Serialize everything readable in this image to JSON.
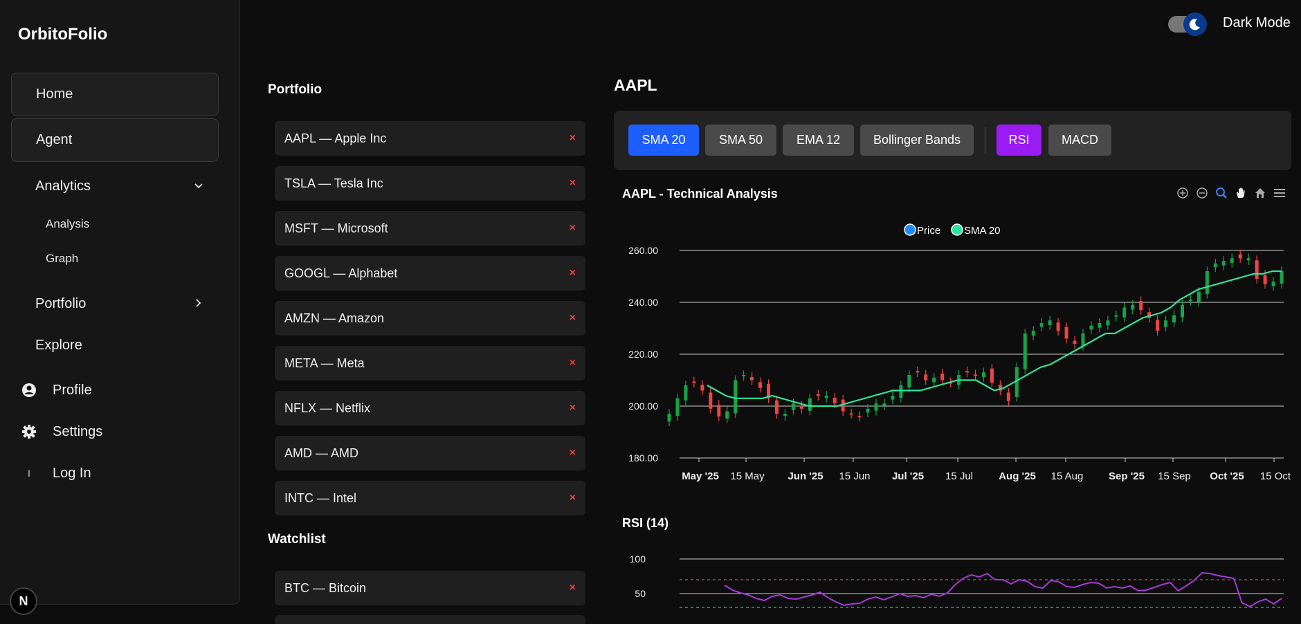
{
  "app": {
    "brand": "OrbitoFolio",
    "dark_mode_label": "Dark Mode"
  },
  "sidebar": {
    "home": "Home",
    "agent": "Agent",
    "analytics": "Analytics",
    "analytics_sub": [
      "Analysis",
      "Graph"
    ],
    "portfolio": "Portfolio",
    "explore": "Explore",
    "profile": "Profile",
    "settings": "Settings",
    "login": "Log In",
    "login_glyph": "I",
    "logo_letter": "N"
  },
  "portfolio": {
    "title": "Portfolio",
    "remove_glyph": "×",
    "items": [
      "AAPL — Apple Inc",
      "TSLA — Tesla Inc",
      "MSFT — Microsoft",
      "GOOGL — Alphabet",
      "AMZN — Amazon",
      "META — Meta",
      "NFLX — Netflix",
      "AMD — AMD",
      "INTC — Intel"
    ]
  },
  "watchlist": {
    "title": "Watchlist",
    "items": [
      "BTC — Bitcoin"
    ]
  },
  "analysis": {
    "ticker": "AAPL",
    "indicators": [
      "SMA 20",
      "SMA 50",
      "EMA 12",
      "Bollinger Bands",
      "RSI",
      "MACD"
    ],
    "colors": {
      "sma_active": "#1e5eff",
      "rsi_active": "#9b1cf2",
      "up": "#16a34a",
      "down": "#ef4444",
      "sma_line": "#2ee59d",
      "rsi_line": "#a63ad6"
    }
  },
  "chart_data": [
    {
      "type": "candlestick",
      "title": "AAPL - Technical Analysis",
      "legend": [
        "Price",
        "SMA 20"
      ],
      "legend_placement": "top-center",
      "y_ticks": [
        "260.00",
        "240.00",
        "220.00",
        "200.00",
        "180.00"
      ],
      "ylim": [
        180,
        260
      ],
      "x_ticks": [
        "May '25",
        "15 May",
        "Jun '25",
        "15 Jun",
        "Jul '25",
        "15 Jul",
        "Aug '25",
        "15 Aug",
        "Sep '25",
        "15 Sep",
        "Oct '25",
        "15 Oct"
      ],
      "grid": true,
      "price_close_approx": [
        197,
        203,
        208,
        209,
        206,
        199,
        196,
        198,
        210,
        212,
        210,
        207,
        203,
        197,
        197,
        201,
        199,
        203,
        204,
        204,
        201,
        198,
        197,
        196,
        199,
        201,
        201,
        204,
        208,
        212,
        213,
        210,
        211,
        210,
        209,
        212,
        213,
        212,
        213,
        209,
        206,
        202,
        215,
        228,
        229,
        232,
        233,
        229,
        226,
        224,
        228,
        231,
        232,
        233,
        235,
        238,
        239,
        237,
        234,
        229,
        233,
        235,
        239,
        241,
        244,
        252,
        255,
        256,
        257,
        257,
        257,
        249,
        247,
        248,
        252
      ],
      "sma_20_approx": [
        208,
        206,
        204,
        203,
        203,
        203,
        203,
        204,
        203,
        202,
        201,
        200,
        200,
        200,
        200,
        201,
        202,
        203,
        204,
        205,
        206,
        206,
        206,
        206,
        207,
        208,
        209,
        210,
        210,
        210,
        208,
        206,
        207,
        209,
        211,
        213,
        215,
        216,
        218,
        220,
        222,
        224,
        226,
        228,
        228,
        230,
        232,
        234,
        235,
        236,
        238,
        241,
        243,
        245,
        246,
        247,
        248,
        249,
        250,
        251,
        251,
        252,
        252
      ]
    },
    {
      "type": "line",
      "title": "RSI (14)",
      "y_ticks": [
        "100",
        "50"
      ],
      "levels": [
        70,
        30
      ],
      "series": [
        {
          "values": [
            62,
            55,
            51,
            48,
            43,
            40,
            46,
            48,
            43,
            42,
            45,
            48,
            52,
            44,
            38,
            33,
            35,
            36,
            42,
            45,
            41,
            45,
            50,
            46,
            47,
            44,
            49,
            46,
            51,
            63,
            72,
            77,
            74,
            79,
            70,
            70,
            64,
            70,
            68,
            60,
            58,
            69,
            67,
            60,
            59,
            63,
            66,
            65,
            58,
            60,
            58,
            61,
            54,
            55,
            59,
            63,
            66,
            54,
            61,
            69,
            80,
            79,
            76,
            74,
            72,
            37,
            31,
            38,
            42,
            35,
            43
          ]
        }
      ]
    }
  ]
}
